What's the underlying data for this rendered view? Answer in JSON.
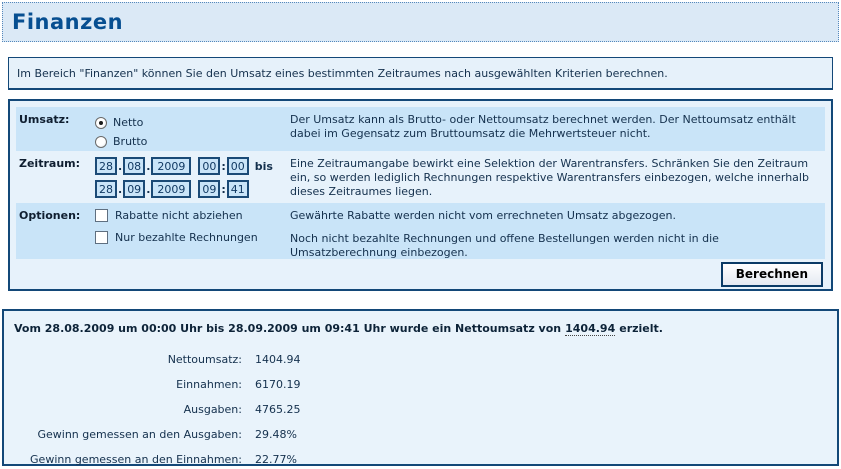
{
  "colors": {
    "accent_border": "#134878",
    "header_title": "#074f91",
    "row_highlight": "#c9e4f8",
    "panel_bg": "#e7f2fb",
    "header_bg": "#dbe9f6",
    "info_bg": "#e6f1fa",
    "results_bg": "#e9f3fb",
    "text": "#14304d"
  },
  "page": {
    "title": "Finanzen"
  },
  "intro": {
    "text": "Im Bereich \"Finanzen\" können Sie den Umsatz eines bestimmten Zeitraumes nach ausgewählten Kriterien berechnen."
  },
  "form": {
    "umsatz": {
      "label": "Umsatz:",
      "options": [
        {
          "label": "Netto",
          "selected": true
        },
        {
          "label": "Brutto",
          "selected": false
        }
      ],
      "description": "Der Umsatz kann als Brutto- oder Nettoumsatz berechnet werden. Der Nettoumsatz enthält dabei im Gegensatz zum Bruttoumsatz die Mehrwertsteuer nicht."
    },
    "zeitraum": {
      "label": "Zeitraum:",
      "date_separator": ".",
      "time_separator": ":",
      "bis_label": "bis",
      "from": {
        "day": "28",
        "month": "08",
        "year": "2009",
        "hour": "00",
        "minute": "00"
      },
      "to": {
        "day": "28",
        "month": "09",
        "year": "2009",
        "hour": "09",
        "minute": "41"
      },
      "description": "Eine Zeitraumangabe bewirkt eine Selektion der Warentransfers. Schränken Sie den Zeitraum ein, so werden lediglich Rechnungen respektive Warentransfers einbezogen, welche innerhalb dieses Zeitraumes liegen."
    },
    "optionen": {
      "label": "Optionen:",
      "checkboxes": [
        {
          "label": "Rabatte nicht abziehen",
          "checked": false,
          "description": "Gewährte Rabatte werden nicht vom errechneten Umsatz abgezogen."
        },
        {
          "label": "Nur bezahlte Rechnungen",
          "checked": false,
          "description": "Noch nicht bezahlte Rechnungen und offene Bestellungen werden nicht in die Umsatzberechnung einbezogen."
        }
      ]
    },
    "submit_label": "Berechnen"
  },
  "results": {
    "headline": {
      "prefix": "Vom 28.08.2009 um 00:00 Uhr bis 28.09.2009 um 09:41 Uhr wurde ein Nettoumsatz von",
      "value": "1404.94",
      "suffix": "erzielt."
    },
    "rows": [
      {
        "label": "Nettoumsatz:",
        "value": "1404.94"
      },
      {
        "label": "Einnahmen:",
        "value": "6170.19"
      },
      {
        "label": "Ausgaben:",
        "value": "4765.25"
      },
      {
        "label": "Gewinn gemessen an den Ausgaben:",
        "value": "29.48%"
      },
      {
        "label": "Gewinn gemessen an den Einnahmen:",
        "value": "22.77%"
      }
    ]
  }
}
